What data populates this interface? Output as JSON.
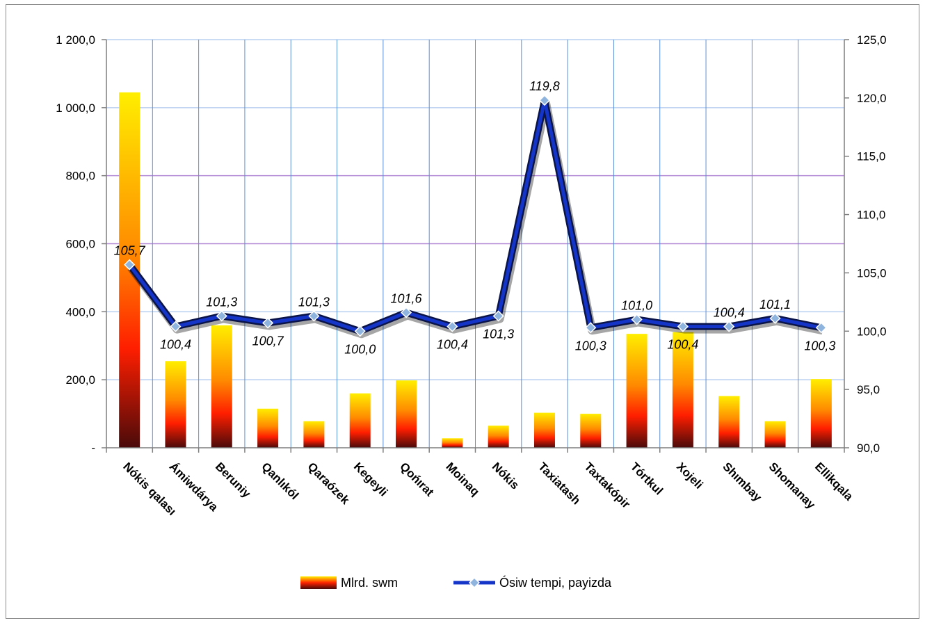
{
  "chart_data": {
    "type": "bar",
    "categories": [
      "Nókis qalası",
      "Ámiwdárya",
      "Beruniy",
      "Qanlıkól",
      "Qaraózek",
      "Kegeyli",
      "Qońırat",
      "Moinaq",
      "Nókis",
      "Taxiatash",
      "Taxtakópir",
      "Tórtkul",
      "Xojeli",
      "Shımbay",
      "Shomanay",
      "Ellikqala"
    ],
    "series": [
      {
        "name": "Mlrd. swm",
        "type": "bar",
        "axis": "left",
        "values": [
          1045,
          255,
          360,
          115,
          78,
          160,
          198,
          28,
          65,
          103,
          100,
          335,
          340,
          152,
          78,
          202
        ]
      },
      {
        "name": "Ósiw tempi, payizda",
        "type": "line",
        "axis": "right",
        "values": [
          105.7,
          100.4,
          101.3,
          100.7,
          101.3,
          100.0,
          101.6,
          100.4,
          101.3,
          119.8,
          100.3,
          101.0,
          100.4,
          100.4,
          101.1,
          100.3
        ],
        "labels": [
          "105,7",
          "100,4",
          "101,3",
          "100,7",
          "101,3",
          "100,0",
          "101,6",
          "100,4",
          "101,3",
          "119,8",
          "100,3",
          "101,0",
          "100,4",
          "100,4",
          "101,1",
          "100,3"
        ]
      }
    ],
    "y_left": {
      "ylim": [
        0,
        1200
      ],
      "ticks": [
        0,
        200,
        400,
        600,
        800,
        1000,
        1200
      ],
      "tick_labels": [
        "-",
        "200,0",
        "400,0",
        "600,0",
        "800,0",
        "1 000,0",
        "1 200,0"
      ]
    },
    "y_right": {
      "ylim": [
        90,
        125
      ],
      "ticks": [
        90,
        95,
        100,
        105,
        110,
        115,
        120,
        125
      ],
      "tick_labels": [
        "90,0",
        "95,0",
        "100,0",
        "105,0",
        "110,0",
        "115,0",
        "120,0",
        "125,0"
      ]
    },
    "grid": true,
    "legend": "bottom",
    "colors": {
      "bar_top": "#ffee00",
      "bar_mid": "#ff2200",
      "bar_bottom": "#4a0a0a",
      "line": "#1535c8",
      "marker": "#8fb4de",
      "grid_vertical": "#5b8fd6",
      "grid_light": "#b8cff0",
      "grid_purple": "#b38ad6",
      "axis": "#7f7f7f"
    }
  }
}
